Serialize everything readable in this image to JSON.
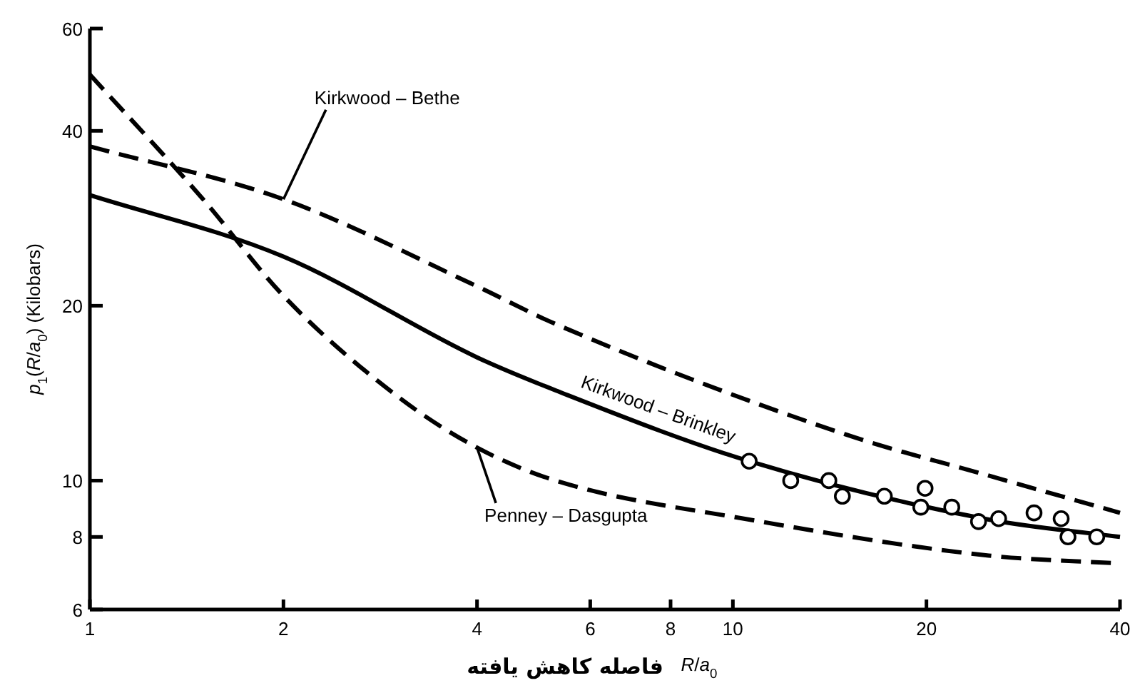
{
  "chart_data": {
    "type": "line",
    "xlabel": "*R*/*a*$_{0}$",
    "ylabel": "*p*$_{1}$(*R*/*a*$_{0}$) (Kilobars)",
    "annotations": [
      "فاصله کاهش یافته"
    ],
    "log": "xy",
    "xlim": [
      1,
      40
    ],
    "xticks": [
      1,
      2,
      4,
      6,
      8,
      10,
      20,
      40
    ],
    "ylim": [
      6,
      60
    ],
    "yticks": [
      6,
      8,
      10,
      20,
      40,
      60
    ],
    "grid": false,
    "legend": false,
    "series": [
      {
        "name": "Kirkwood – Bethe",
        "color": "#000000",
        "line_style": "dashed",
        "marker": "none",
        "x": [
          1,
          2,
          4,
          5.3,
          15,
          25,
          40
        ],
        "values": [
          37.6,
          30.5,
          21.6,
          18.6,
          12,
          10.2,
          8.8
        ]
      },
      {
        "name": "Kirkwood – Brinkley",
        "color": "#000000",
        "line_style": "solid",
        "marker": "none",
        "x": [
          1,
          2,
          4,
          5.3,
          10.6,
          25,
          40
        ],
        "values": [
          31,
          24.3,
          16.3,
          14.3,
          10.8,
          8.57,
          8.0
        ]
      },
      {
        "name": "Penney – Dasgupta",
        "color": "#000000",
        "line_style": "dashed",
        "marker": "none",
        "x": [
          1,
          1.5,
          2,
          3,
          4,
          5.3,
          10.6,
          25,
          40
        ],
        "values": [
          50,
          30.5,
          20.8,
          14.0,
          11.4,
          10.0,
          8.57,
          7.43,
          7.2
        ]
      },
      {
        "type": "scatter",
        "color": "#000000",
        "marker": "circle",
        "x": [
          10.6,
          12.3,
          14.1,
          14.8,
          17.2,
          19.6,
          19.9,
          21.9,
          24.1,
          25.9,
          29.4,
          32.4,
          33.2,
          36.8
        ],
        "values": [
          10.8,
          10.0,
          10.0,
          9.4,
          9.4,
          9.0,
          9.7,
          9.0,
          8.5,
          8.6,
          8.8,
          8.6,
          8.0,
          8.0
        ]
      }
    ]
  }
}
